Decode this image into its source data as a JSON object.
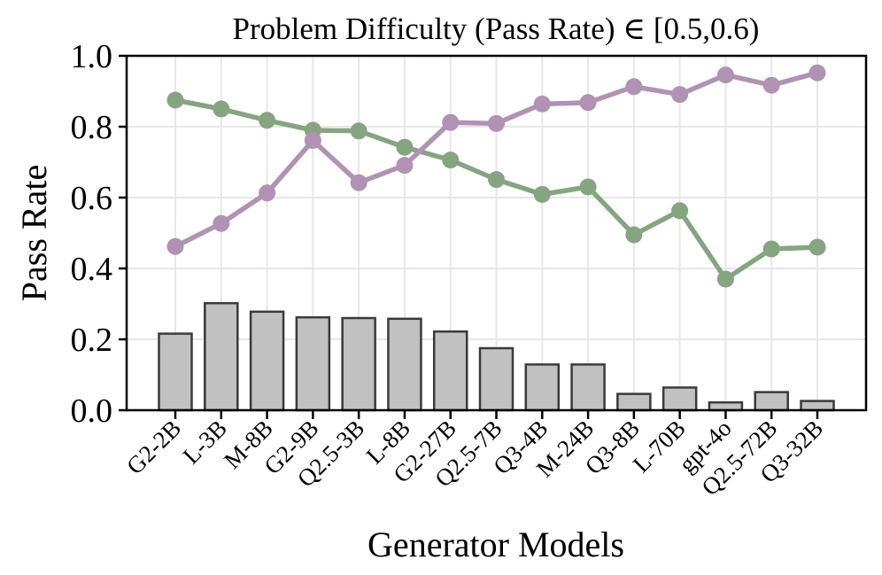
{
  "figure": {
    "title": "Problem Difficulty (Pass Rate) ∈ [0.5,0.6)",
    "xlabel": "Generator Models",
    "ylabel": "Pass Rate"
  },
  "chart_data": {
    "type": "bar",
    "title": "Problem Difficulty (Pass Rate) ∈ [0.5,0.6)",
    "xlabel": "Generator Models",
    "ylabel": "Pass Rate",
    "ylim": [
      0.0,
      1.0
    ],
    "yticks": [
      0.0,
      0.2,
      0.4,
      0.6,
      0.8,
      1.0
    ],
    "ytick_labels": [
      "0.0",
      "0.2",
      "0.4",
      "0.6",
      "0.8",
      "1.0"
    ],
    "grid": true,
    "legend_position": "none",
    "categories": [
      "G2-2B",
      "L-3B",
      "M-8B",
      "G2-9B",
      "Q2.5-3B",
      "L-8B",
      "G2-27B",
      "Q2.5-7B",
      "Q3-4B",
      "M-24B",
      "Q3-8B",
      "L-70B",
      "gpt-4o",
      "Q2.5-72B",
      "Q3-32B"
    ],
    "series": [
      {
        "name": "green-line",
        "type": "line",
        "marker": "circle",
        "color": "#85a581",
        "values": [
          0.875,
          0.85,
          0.818,
          0.79,
          0.788,
          0.742,
          0.706,
          0.651,
          0.609,
          0.63,
          0.495,
          0.563,
          0.37,
          0.455,
          0.46
        ]
      },
      {
        "name": "purple-line",
        "type": "line",
        "marker": "circle",
        "color": "#b292b4",
        "values": [
          0.462,
          0.527,
          0.613,
          0.761,
          0.642,
          0.691,
          0.812,
          0.809,
          0.864,
          0.868,
          0.913,
          0.891,
          0.946,
          0.917,
          0.952
        ]
      },
      {
        "name": "gray-bars",
        "type": "bar",
        "color": "#c2c1c1",
        "edge_color": "#3a3a3a",
        "values": [
          0.216,
          0.302,
          0.278,
          0.262,
          0.26,
          0.258,
          0.222,
          0.175,
          0.129,
          0.129,
          0.046,
          0.064,
          0.022,
          0.051,
          0.026
        ]
      }
    ],
    "colors": {
      "grid": "#e7e7e7",
      "spine": "#000000",
      "background": "#ffffff"
    }
  }
}
